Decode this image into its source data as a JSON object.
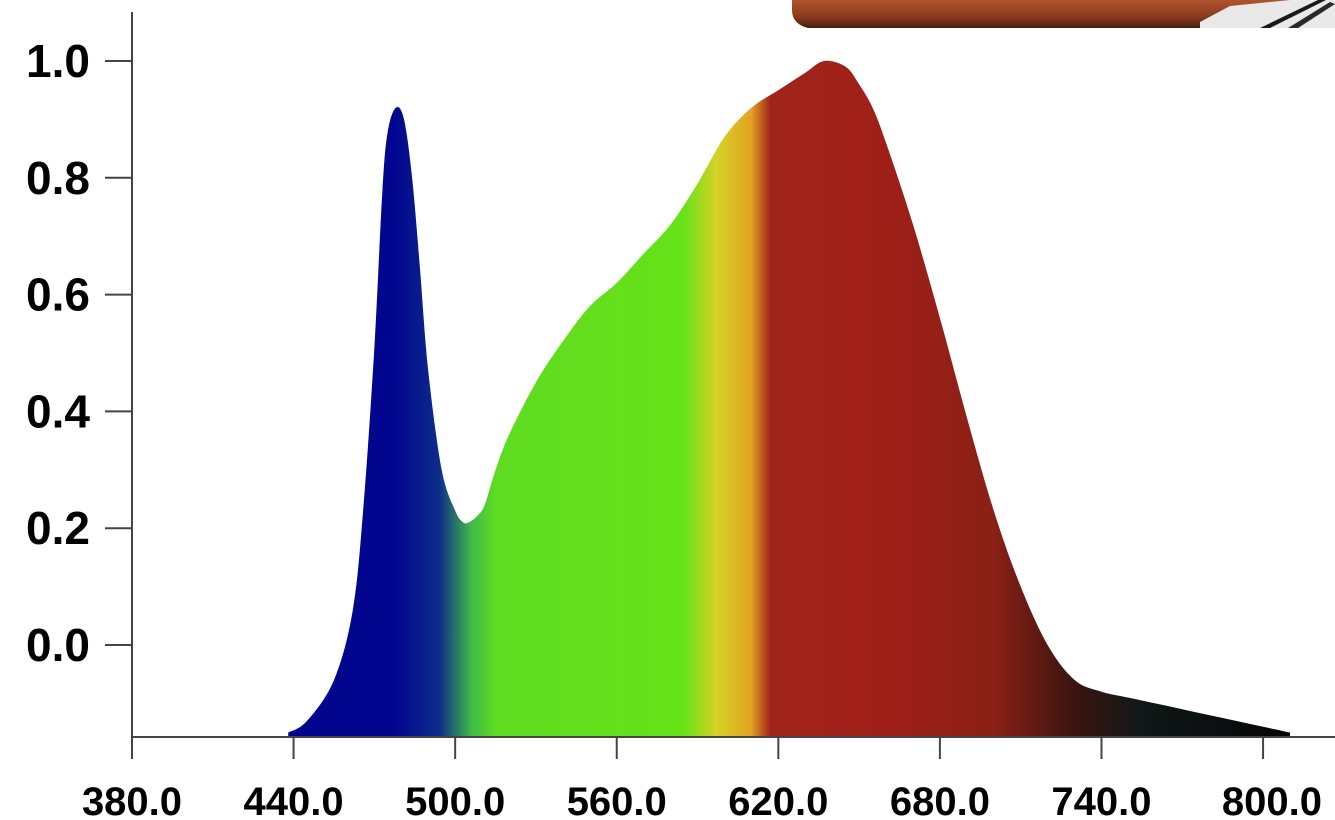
{
  "chart_data": {
    "type": "area",
    "title": "",
    "xlabel": "",
    "ylabel": "",
    "xlim": [
      380,
      810
    ],
    "ylim": [
      -0.15,
      1.07
    ],
    "x_ticks": [
      "380.0",
      "440.0",
      "500.0",
      "560.0",
      "620.0",
      "680.0",
      "740.0",
      "800.0"
    ],
    "y_ticks": [
      "1.0",
      "0.8",
      "0.6",
      "0.4",
      "0.2",
      "0.0"
    ],
    "grid": false,
    "legend": "none",
    "series": [
      {
        "x": [
          438,
          445,
          455,
          462,
          466,
          470,
          473,
          475,
          478,
          481,
          484,
          487,
          490,
          495,
          500,
          503,
          505,
          508,
          511,
          515,
          520,
          530,
          540,
          550,
          560,
          570,
          580,
          590,
          600,
          610,
          620,
          630,
          637,
          645,
          650,
          655,
          660,
          670,
          680,
          690,
          700,
          710,
          720,
          730,
          740,
          750,
          760,
          770,
          780,
          790,
          800,
          810
        ],
        "values": [
          -0.15,
          -0.13,
          -0.06,
          0.06,
          0.24,
          0.51,
          0.78,
          0.88,
          0.92,
          0.9,
          0.8,
          0.64,
          0.47,
          0.3,
          0.23,
          0.21,
          0.21,
          0.22,
          0.24,
          0.3,
          0.36,
          0.45,
          0.52,
          0.58,
          0.62,
          0.67,
          0.72,
          0.79,
          0.87,
          0.92,
          0.95,
          0.98,
          1.0,
          0.99,
          0.96,
          0.92,
          0.86,
          0.72,
          0.56,
          0.39,
          0.23,
          0.1,
          0.0,
          -0.06,
          -0.08,
          -0.09,
          -0.1,
          -0.11,
          -0.12,
          -0.13,
          -0.14,
          -0.15
        ]
      }
    ],
    "spectrum_colors": [
      {
        "at": 478,
        "color": "#02068f"
      },
      {
        "at": 494,
        "color": "#0d2c8a"
      },
      {
        "at": 506,
        "color": "#3fb94b"
      },
      {
        "at": 515,
        "color": "#5fdb22"
      },
      {
        "at": 585,
        "color": "#66e218"
      },
      {
        "at": 597,
        "color": "#d6d226"
      },
      {
        "at": 610,
        "color": "#e2a322"
      },
      {
        "at": 617,
        "color": "#a1241a"
      },
      {
        "at": 660,
        "color": "#9f1f18"
      },
      {
        "at": 700,
        "color": "#8a2016"
      },
      {
        "at": 730,
        "color": "#3a1410"
      },
      {
        "at": 755,
        "color": "#101818"
      },
      {
        "at": 810,
        "color": "#060606"
      }
    ]
  },
  "decor": {
    "photo_top_right": "fixture-photo"
  }
}
